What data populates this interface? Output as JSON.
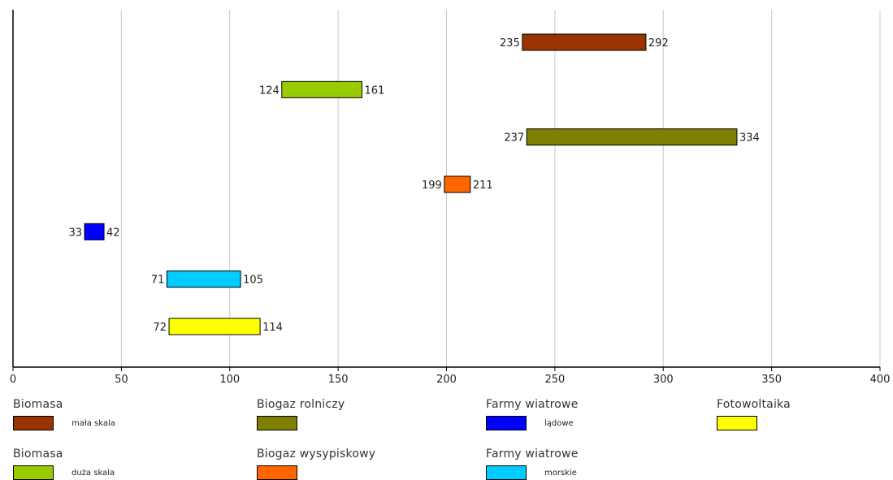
{
  "chart_data": {
    "type": "bar",
    "subtype": "floating-range-horizontal",
    "xlim": [
      0,
      400
    ],
    "xticks": [
      0,
      50,
      100,
      150,
      200,
      250,
      300,
      350,
      400
    ],
    "grid": true,
    "bars": [
      {
        "series": "biomasa-mala",
        "start": 235,
        "end": 292,
        "start_label": "235",
        "end_label": "292",
        "color": "#993300"
      },
      {
        "series": "biomasa-duza",
        "start": 124,
        "end": 161,
        "start_label": "124",
        "end_label": "161",
        "color": "#99cc00"
      },
      {
        "series": "biogaz-rolniczy",
        "start": 237,
        "end": 334,
        "start_label": "237",
        "end_label": "334",
        "color": "#808000"
      },
      {
        "series": "biogaz-wysypiskowy",
        "start": 199,
        "end": 211,
        "start_label": "199",
        "end_label": "211",
        "color": "#ff6600"
      },
      {
        "series": "farmy-ladowe",
        "start": 33,
        "end": 42,
        "start_label": "33",
        "end_label": "42",
        "color": "#0000ff"
      },
      {
        "series": "farmy-morskie",
        "start": 71,
        "end": 105,
        "start_label": "71",
        "end_label": "105",
        "color": "#00ccff"
      },
      {
        "series": "fotowoltaika",
        "start": 72,
        "end": 114,
        "start_label": "72",
        "end_label": "114",
        "color": "#ffff00"
      }
    ],
    "legend": [
      {
        "title": "Biomasa",
        "sub": "mała skala",
        "color": "#993300"
      },
      {
        "title": "Biogaz rolniczy",
        "sub": "",
        "color": "#808000"
      },
      {
        "title": "Farmy wiatrowe",
        "sub": "lądowe",
        "color": "#0000ff"
      },
      {
        "title": "Fotowoltaika",
        "sub": "",
        "color": "#ffff00"
      },
      {
        "title": "Biomasa",
        "sub": "duża skala",
        "color": "#99cc00"
      },
      {
        "title": "Biogaz wysypiskowy",
        "sub": "",
        "color": "#ff6600"
      },
      {
        "title": "Farmy wiatrowe",
        "sub": "morskie",
        "color": "#00ccff"
      }
    ]
  }
}
